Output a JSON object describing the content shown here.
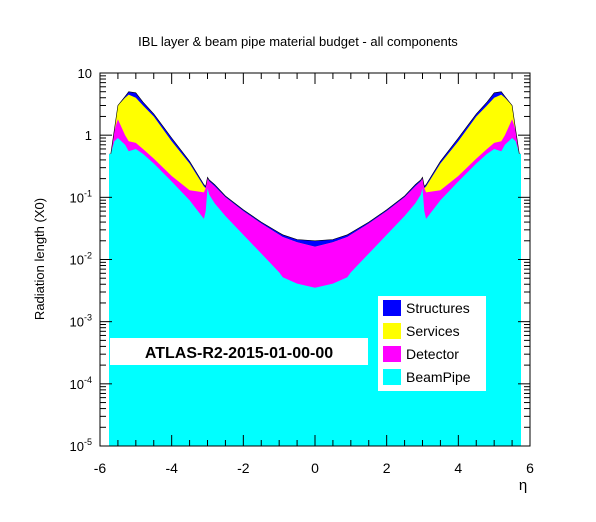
{
  "chart_data": {
    "type": "area",
    "title": "IBL layer & beam pipe material budget - all components",
    "xlabel": "η",
    "ylabel": "Radiation length (X0)",
    "xlim": [
      -6,
      6
    ],
    "ylim": [
      1e-05,
      10
    ],
    "log_y": true,
    "stacked": true,
    "grid": false,
    "x_ticks": [
      "-6",
      "-4",
      "-2",
      "0",
      "2",
      "4",
      "6"
    ],
    "y_ticks": [
      {
        "value": 1e-05,
        "base": "10",
        "exp": "-5"
      },
      {
        "value": 0.0001,
        "base": "10",
        "exp": "-4"
      },
      {
        "value": 0.001,
        "base": "10",
        "exp": "-3"
      },
      {
        "value": 0.01,
        "base": "10",
        "exp": "-2"
      },
      {
        "value": 0.1,
        "base": "10",
        "exp": "-1"
      },
      {
        "value": 1,
        "base": "1",
        "exp": ""
      },
      {
        "value": 10,
        "base": "10",
        "exp": ""
      }
    ],
    "x": [
      0,
      0.5,
      0.9,
      1.0,
      1.5,
      2.0,
      2.5,
      2.8,
      2.95,
      3.0,
      3.05,
      3.1,
      3.5,
      4.0,
      4.5,
      4.8,
      5.0,
      5.2,
      5.3,
      5.5,
      5.6,
      5.7
    ],
    "series": [
      {
        "name": "BeamPipe",
        "color": "#00ffff",
        "cumulative": [
          0.0035,
          0.0041,
          0.0052,
          0.0062,
          0.0125,
          0.025,
          0.05,
          0.08,
          0.11,
          0.14,
          0.06,
          0.045,
          0.09,
          0.18,
          0.35,
          0.5,
          0.6,
          0.55,
          0.7,
          0.9,
          0.8,
          0.5
        ]
      },
      {
        "name": "Detector",
        "color": "#ff00ff",
        "cumulative": [
          0.016,
          0.019,
          0.023,
          0.025,
          0.038,
          0.06,
          0.1,
          0.15,
          0.18,
          0.2,
          0.14,
          0.12,
          0.13,
          0.22,
          0.42,
          0.6,
          0.75,
          0.8,
          1.0,
          1.8,
          1.2,
          0.5
        ]
      },
      {
        "name": "Services",
        "color": "#ffff00",
        "cumulative": [
          0.016,
          0.019,
          0.023,
          0.025,
          0.038,
          0.06,
          0.1,
          0.15,
          0.18,
          0.2,
          0.14,
          0.15,
          0.35,
          0.8,
          2.0,
          3.0,
          4.0,
          4.5,
          4.0,
          3.0,
          1.2,
          0.5
        ]
      },
      {
        "name": "Structures",
        "color": "#0000ff",
        "cumulative": [
          0.02,
          0.021,
          0.025,
          0.027,
          0.04,
          0.063,
          0.105,
          0.16,
          0.19,
          0.21,
          0.15,
          0.16,
          0.38,
          0.9,
          2.2,
          3.4,
          4.8,
          5.0,
          4.2,
          3.0,
          1.2,
          0.5
        ]
      }
    ],
    "legend_position": "bottom-right",
    "legend": [
      "Structures",
      "Services",
      "Detector",
      "BeamPipe"
    ],
    "annotation": "ATLAS-R2-2015-01-00-00"
  }
}
